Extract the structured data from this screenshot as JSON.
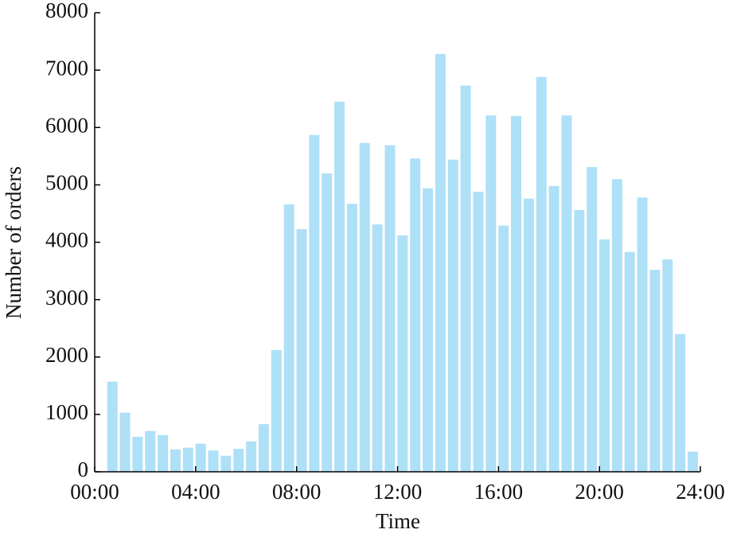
{
  "chart_data": {
    "type": "bar",
    "xlabel": "Time",
    "ylabel": "Number of orders",
    "color": "#aee0f7",
    "x": [
      0.7,
      1.2,
      1.7,
      2.2,
      2.7,
      3.2,
      3.7,
      4.2,
      4.7,
      5.2,
      5.7,
      6.2,
      6.7,
      7.2,
      7.7,
      8.2,
      8.7,
      9.2,
      9.7,
      10.2,
      10.7,
      11.2,
      11.7,
      12.2,
      12.7,
      13.2,
      13.7,
      14.2,
      14.7,
      15.2,
      15.7,
      16.2,
      16.7,
      17.2,
      17.7,
      18.2,
      18.7,
      19.2,
      19.7,
      20.2,
      20.7,
      21.2,
      21.7,
      22.2,
      22.7,
      23.2,
      23.7
    ],
    "values": [
      1570,
      1030,
      610,
      710,
      640,
      390,
      420,
      490,
      370,
      280,
      400,
      530,
      830,
      2120,
      4660,
      4230,
      5870,
      5200,
      6450,
      4670,
      5730,
      4310,
      5690,
      4120,
      5460,
      4940,
      7280,
      5440,
      6730,
      4880,
      6210,
      4290,
      6200,
      4760,
      6880,
      4980,
      6210,
      4560,
      5310,
      4050,
      5100,
      3830,
      4780,
      3520,
      3700,
      2400,
      350
    ],
    "xlim": [
      0,
      24
    ],
    "xticks": [
      {
        "value": 0,
        "label": "00:00"
      },
      {
        "value": 4,
        "label": "04:00"
      },
      {
        "value": 8,
        "label": "08:00"
      },
      {
        "value": 12,
        "label": "12:00"
      },
      {
        "value": 16,
        "label": "16:00"
      },
      {
        "value": 20,
        "label": "20:00"
      },
      {
        "value": 24,
        "label": "24:00"
      }
    ],
    "ylim": [
      0,
      8000
    ],
    "yticks": [
      0,
      1000,
      2000,
      3000,
      4000,
      5000,
      6000,
      7000,
      8000
    ],
    "grid": false
  }
}
